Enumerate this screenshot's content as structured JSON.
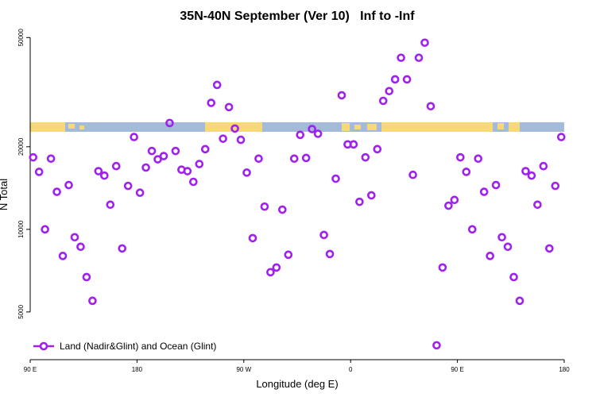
{
  "chart_data": {
    "type": "scatter",
    "title": "35N-40N September (Ver 10)   Inf to -Inf",
    "x_label": "Longitude (deg E)",
    "y_label": "N Total",
    "log_y": true,
    "legend_position": "bottom-left",
    "xlim": [
      90,
      540
    ],
    "ylim": [
      3350,
      55000
    ],
    "xticks": [
      {
        "value": 90,
        "label": "90 E"
      },
      {
        "value": 180,
        "label": "180"
      },
      {
        "value": 270,
        "label": "90 W"
      },
      {
        "value": 360,
        "label": "0"
      },
      {
        "value": 450,
        "label": "90 E"
      },
      {
        "value": 540,
        "label": "180"
      }
    ],
    "yticks": [
      5000,
      10000,
      20000,
      50000
    ],
    "x": [
      92.5,
      97.5,
      102.5,
      107.5,
      112.5,
      117.5,
      122.5,
      127.5,
      132.5,
      137.5,
      142.5,
      147.5,
      152.5,
      157.5,
      162.5,
      167.5,
      172.5,
      177.5,
      182.5,
      187.5,
      192.5,
      197.5,
      202.5,
      207.5,
      212.5,
      217.5,
      222.5,
      227.5,
      232.5,
      237.5,
      242.5,
      247.5,
      252.5,
      257.5,
      262.5,
      267.5,
      272.5,
      277.5,
      282.5,
      287.5,
      292.5,
      297.5,
      302.5,
      307.5,
      312.5,
      317.5,
      322.5,
      327.5,
      332.5,
      337.5,
      342.5,
      347.5,
      352.5,
      357.5,
      362.5,
      367.5,
      372.5,
      377.5,
      382.5,
      387.5,
      392.5,
      397.5,
      402.5,
      407.5,
      412.5,
      417.5,
      422.5,
      427.5,
      432.5,
      437.5,
      442.5,
      447.5,
      452.5,
      457.5,
      462.5,
      467.5,
      472.5,
      477.5,
      482.5,
      487.5,
      492.5,
      497.5,
      502.5,
      507.5,
      512.5,
      517.5,
      522.5,
      527.5,
      532.5,
      537.5
    ],
    "series": [
      {
        "name": "Land (Nadir&Glint) and Ocean (Glint)",
        "color": "#a020f0",
        "values": [
          18300,
          16200,
          10000,
          18100,
          13700,
          8000,
          14500,
          9360,
          8640,
          6700,
          5490,
          16300,
          15700,
          12300,
          17000,
          8520,
          14400,
          21700,
          13600,
          16800,
          19300,
          18000,
          18500,
          24400,
          19300,
          16500,
          16300,
          14900,
          17300,
          19600,
          28900,
          33600,
          21400,
          27900,
          23300,
          21200,
          16100,
          9290,
          18100,
          12100,
          6980,
          7260,
          11800,
          8080,
          18100,
          22100,
          18200,
          23200,
          22300,
          9540,
          8130,
          15300,
          30800,
          20400,
          20400,
          12600,
          18300,
          13300,
          19600,
          29400,
          31900,
          35200,
          42200,
          35200,
          15800,
          42200,
          47900,
          28100,
          3780,
          7260,
          12200,
          12800,
          18300,
          16200,
          10000,
          18100,
          13700,
          8000,
          14500,
          9360,
          8640,
          6700,
          5490,
          16300,
          15700,
          12300,
          17000,
          8520,
          14400,
          21700
        ]
      }
    ]
  }
}
